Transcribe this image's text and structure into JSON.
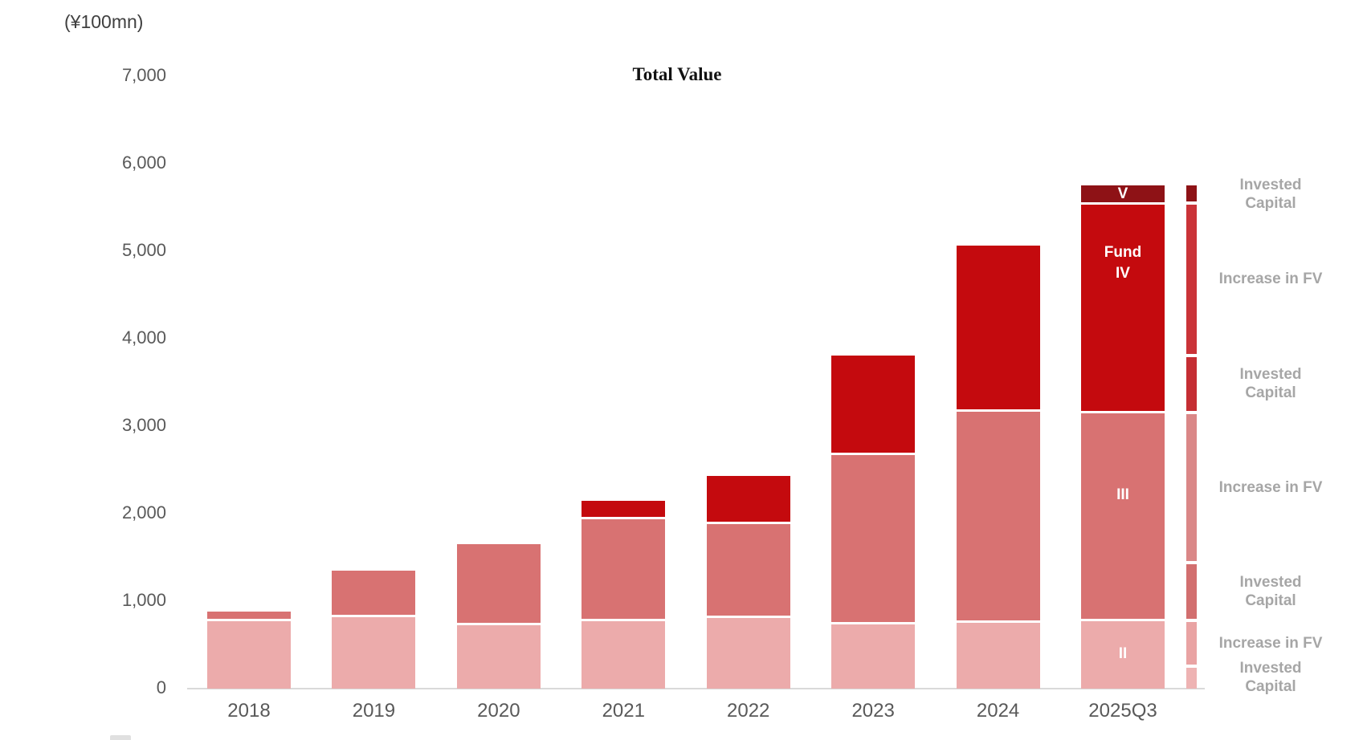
{
  "chart_data": {
    "type": "bar",
    "stacked": true,
    "title": "Total Value",
    "unit_label": "(¥100mn)",
    "categories": [
      "2018",
      "2019",
      "2020",
      "2021",
      "2022",
      "2023",
      "2024",
      "2025Q3"
    ],
    "series": [
      {
        "name": "Fund II",
        "in_bar_label_lines": [
          "II"
        ],
        "color": "#ecabab",
        "values": [
          780,
          830,
          740,
          780,
          820,
          750,
          770,
          780
        ]
      },
      {
        "name": "Fund III",
        "in_bar_label_lines": [
          "III"
        ],
        "color": "#d87272",
        "values": [
          100,
          520,
          910,
          1170,
          1070,
          1930,
          2410,
          2380
        ]
      },
      {
        "name": "Fund IV",
        "in_bar_label_lines": [
          "Fund",
          "IV"
        ],
        "color": "#c40a0e",
        "values": [
          0,
          0,
          0,
          200,
          540,
          1130,
          1880,
          2390
        ]
      },
      {
        "name": "Fund V",
        "in_bar_label_lines": [
          "V"
        ],
        "color": "#8e1216",
        "values": [
          0,
          0,
          0,
          0,
          0,
          0,
          0,
          200
        ]
      }
    ],
    "ylim": [
      0,
      7000
    ],
    "ytick_interval": 1000,
    "yticks": [
      "0",
      "1,000",
      "2,000",
      "3,000",
      "4,000",
      "5,000",
      "6,000",
      "7,000"
    ],
    "legend_position": "right",
    "grid": false,
    "breakdown_bar": {
      "category": "2025Q3",
      "segments_bottom_to_top": [
        {
          "fund": "Fund II",
          "label_lines": [
            "Invested",
            "Capital"
          ],
          "value": 260,
          "color": "#eeb3b3"
        },
        {
          "fund": "Fund II",
          "label_lines": [
            "Increase in FV"
          ],
          "value": 520,
          "color": "#e9a3a3"
        },
        {
          "fund": "Fund III",
          "label_lines": [
            "Invested",
            "Capital"
          ],
          "value": 660,
          "color": "#d26f6f"
        },
        {
          "fund": "Fund III",
          "label_lines": [
            "Increase in FV"
          ],
          "value": 1720,
          "color": "#da8787"
        },
        {
          "fund": "Fund IV",
          "label_lines": [
            "Invested",
            "Capital"
          ],
          "value": 650,
          "color": "#c52e33"
        },
        {
          "fund": "Fund IV",
          "label_lines": [
            "Increase in FV"
          ],
          "value": 1740,
          "color": "#ca3338"
        },
        {
          "fund": "Fund V",
          "label_lines": [
            "Invested",
            "Capital"
          ],
          "value": 200,
          "color": "#8e1216"
        }
      ]
    },
    "colors": {
      "axis_line": "#d9d9d9",
      "tick_text": "#595959",
      "legend_text": "#a6a6a6",
      "in_bar_text": "#ffffff"
    }
  }
}
